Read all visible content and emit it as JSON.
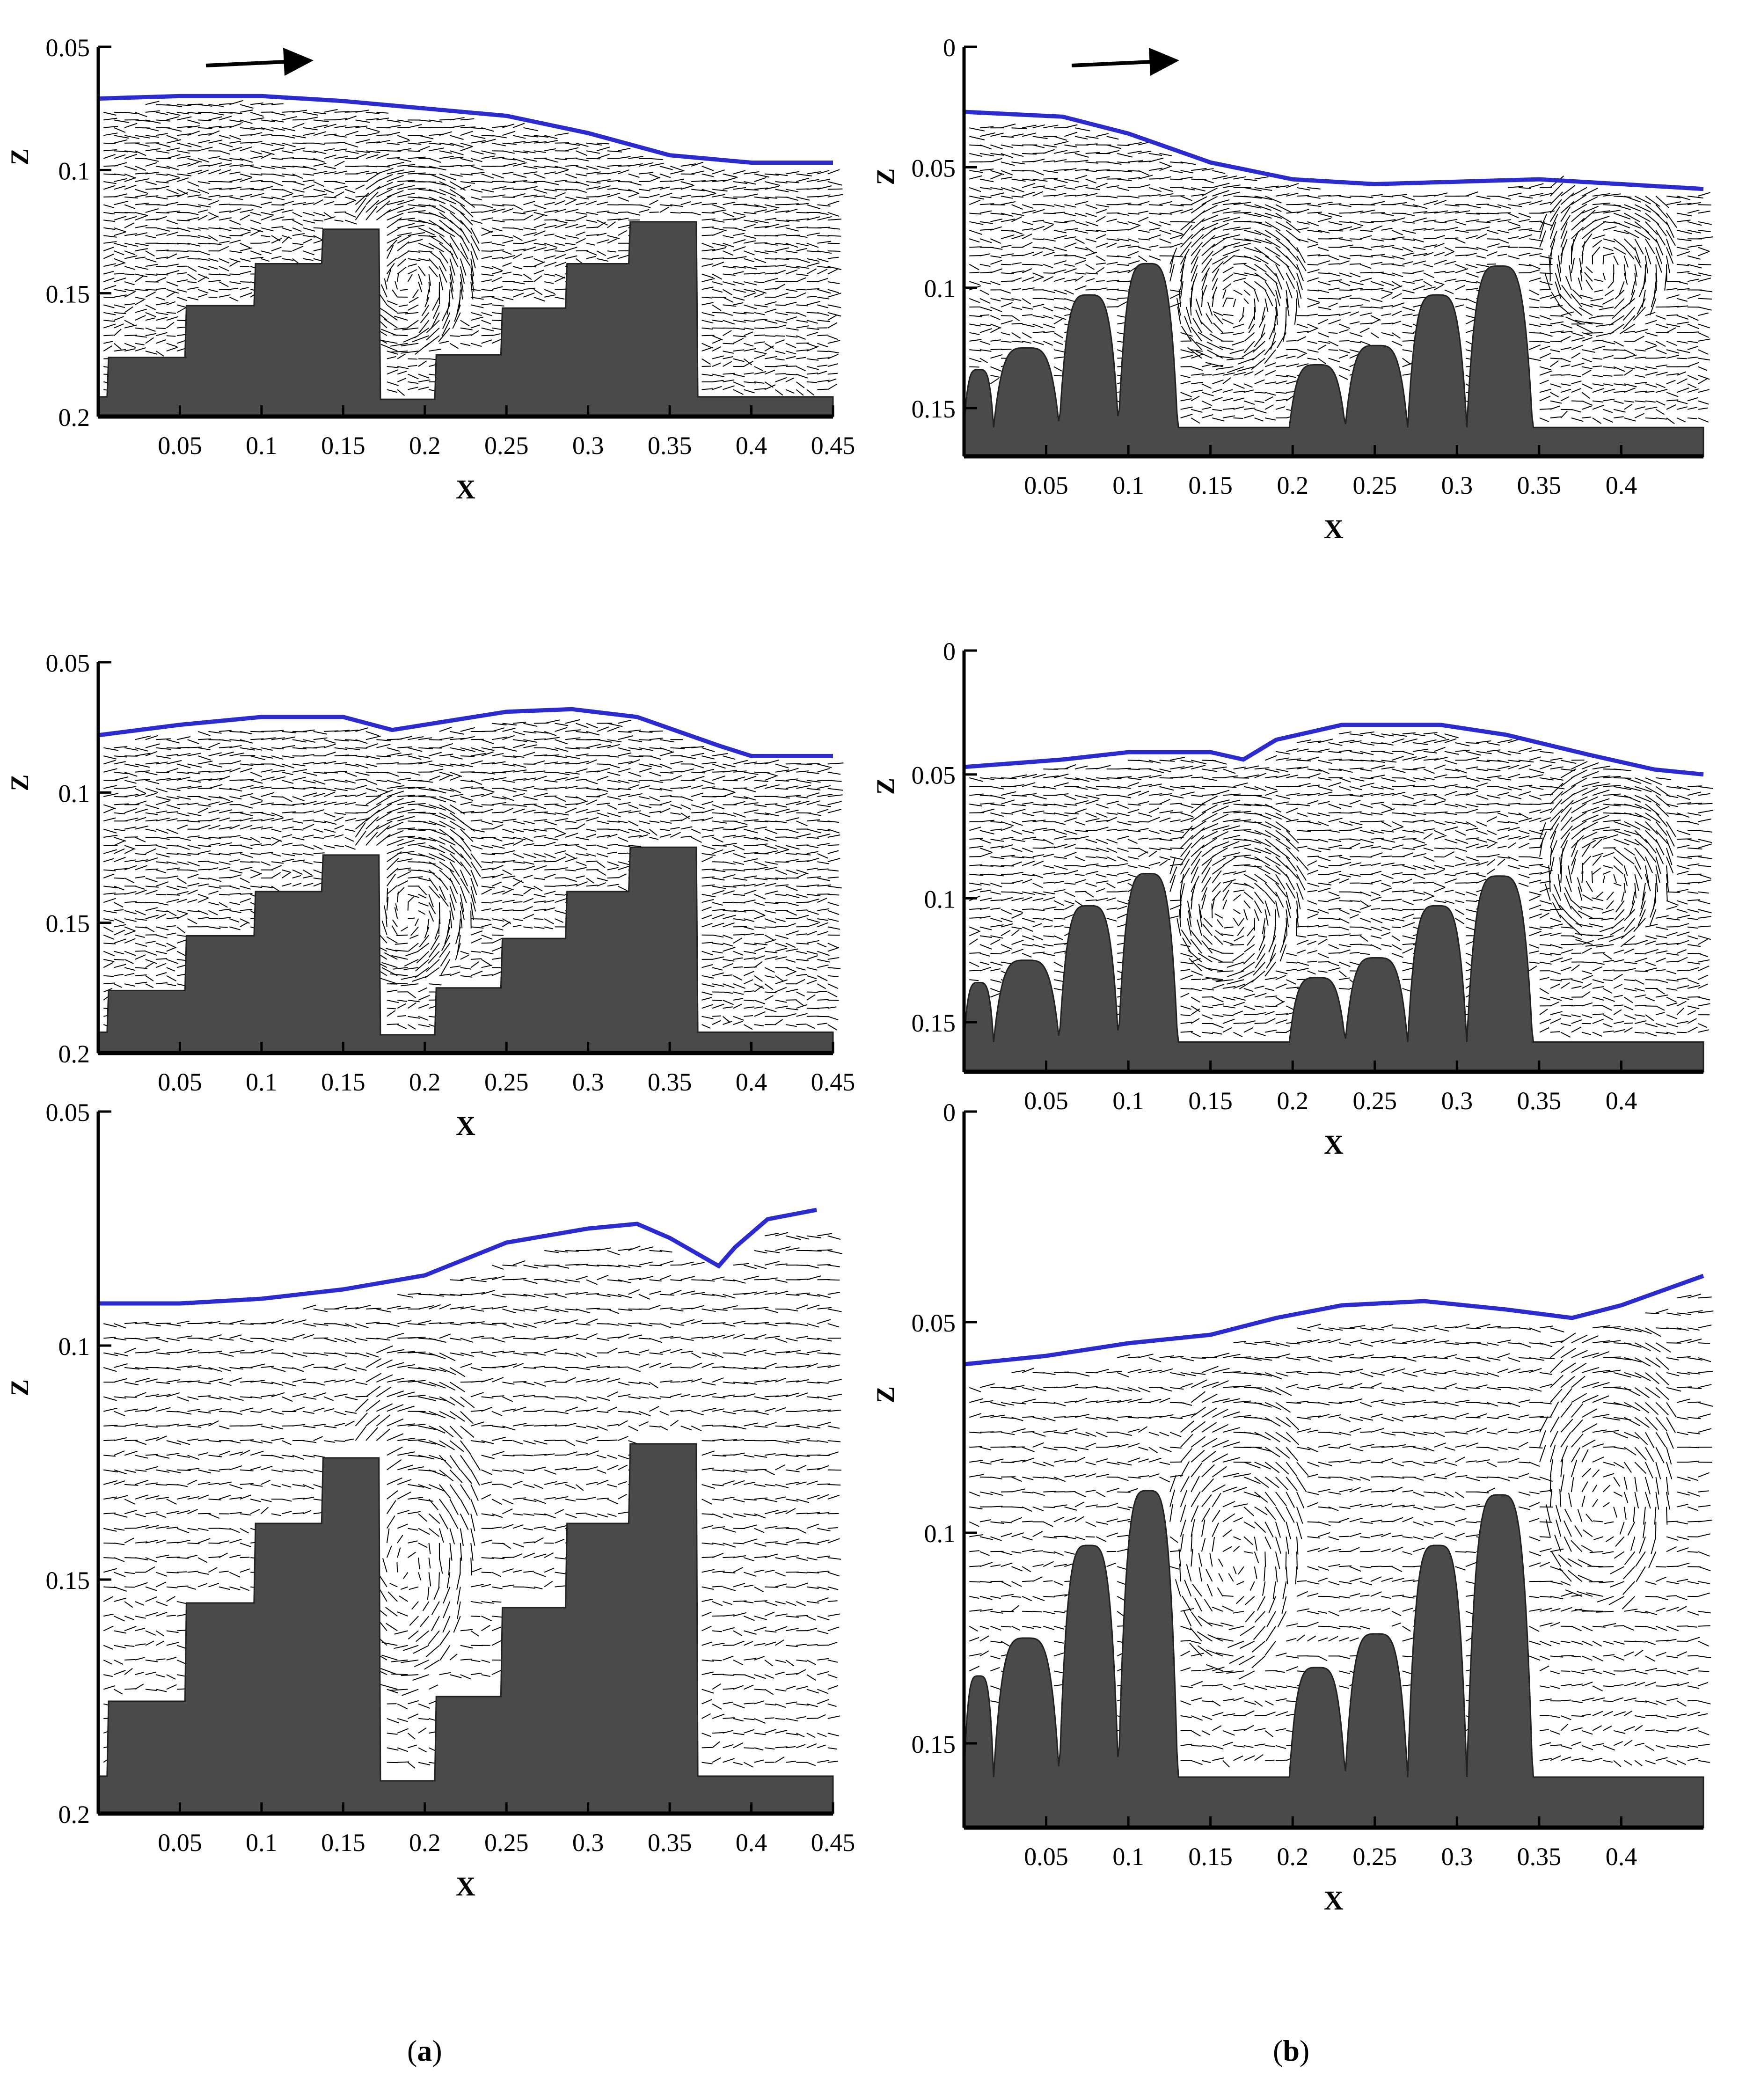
{
  "chart_data": [
    {
      "type": "vector-field",
      "panel": "a-1",
      "xlabel": "X",
      "ylabel": "Z",
      "xlim": [
        0.0,
        0.45
      ],
      "ylim": [
        0.05,
        0.2
      ],
      "y_inverted": true,
      "xticks": [
        "0.05",
        "0.1",
        "0.15",
        "0.2",
        "0.25",
        "0.3",
        "0.35",
        "0.4",
        "0.45"
      ],
      "yticks": [
        "0.05",
        "0.1",
        "0.15",
        "0.2"
      ],
      "flow_arrow": true,
      "free_surface": [
        [
          0.0,
          0.071
        ],
        [
          0.05,
          0.07
        ],
        [
          0.1,
          0.07
        ],
        [
          0.15,
          0.072
        ],
        [
          0.2,
          0.075
        ],
        [
          0.25,
          0.078
        ],
        [
          0.3,
          0.085
        ],
        [
          0.35,
          0.094
        ],
        [
          0.4,
          0.097
        ],
        [
          0.45,
          0.097
        ]
      ],
      "obstacle": "stepped"
    },
    {
      "type": "vector-field",
      "panel": "a-2",
      "xlabel": "X",
      "ylabel": "Z",
      "xlim": [
        0.0,
        0.45
      ],
      "ylim": [
        0.05,
        0.2
      ],
      "y_inverted": true,
      "xticks": [
        "0.05",
        "0.1",
        "0.15",
        "0.2",
        "0.25",
        "0.3",
        "0.35",
        "0.4",
        "0.45"
      ],
      "yticks": [
        "0.05",
        "0.1",
        "0.15",
        "0.2"
      ],
      "flow_arrow": false,
      "free_surface": [
        [
          0.0,
          0.078
        ],
        [
          0.05,
          0.074
        ],
        [
          0.1,
          0.071
        ],
        [
          0.15,
          0.071
        ],
        [
          0.18,
          0.076
        ],
        [
          0.21,
          0.073
        ],
        [
          0.25,
          0.069
        ],
        [
          0.29,
          0.068
        ],
        [
          0.33,
          0.071
        ],
        [
          0.38,
          0.082
        ],
        [
          0.4,
          0.086
        ],
        [
          0.45,
          0.086
        ]
      ],
      "obstacle": "stepped"
    },
    {
      "type": "vector-field",
      "panel": "a-3",
      "xlabel": "X",
      "ylabel": "Z",
      "xlim": [
        0.0,
        0.45
      ],
      "ylim": [
        0.05,
        0.2
      ],
      "y_inverted": true,
      "xticks": [
        "0.05",
        "0.1",
        "0.15",
        "0.2",
        "0.25",
        "0.3",
        "0.35",
        "0.4",
        "0.45"
      ],
      "yticks": [
        "0.05",
        "0.1",
        "0.15",
        "0.2"
      ],
      "flow_arrow": false,
      "free_surface": [
        [
          0.0,
          0.091
        ],
        [
          0.05,
          0.091
        ],
        [
          0.1,
          0.09
        ],
        [
          0.15,
          0.088
        ],
        [
          0.2,
          0.085
        ],
        [
          0.25,
          0.078
        ],
        [
          0.3,
          0.075
        ],
        [
          0.33,
          0.074
        ],
        [
          0.35,
          0.077
        ],
        [
          0.38,
          0.083
        ],
        [
          0.39,
          0.079
        ],
        [
          0.41,
          0.073
        ],
        [
          0.44,
          0.071
        ]
      ],
      "obstacle": "stepped"
    },
    {
      "type": "vector-field",
      "panel": "b-1",
      "xlabel": "X",
      "ylabel": "Z",
      "xlim": [
        0.0,
        0.45
      ],
      "ylim": [
        0.0,
        0.17
      ],
      "y_inverted": true,
      "xticks": [
        "0.05",
        "0.1",
        "0.15",
        "0.2",
        "0.25",
        "0.3",
        "0.35",
        "0.4"
      ],
      "yticks": [
        "0",
        "0.05",
        "0.1",
        "0.15"
      ],
      "flow_arrow": true,
      "free_surface": [
        [
          0.0,
          0.027
        ],
        [
          0.06,
          0.029
        ],
        [
          0.1,
          0.036
        ],
        [
          0.15,
          0.048
        ],
        [
          0.2,
          0.055
        ],
        [
          0.25,
          0.057
        ],
        [
          0.3,
          0.056
        ],
        [
          0.35,
          0.055
        ],
        [
          0.4,
          0.057
        ],
        [
          0.45,
          0.059
        ]
      ],
      "obstacle": "humps"
    },
    {
      "type": "vector-field",
      "panel": "b-2",
      "xlabel": "X",
      "ylabel": "Z",
      "xlim": [
        0.0,
        0.45
      ],
      "ylim": [
        0.0,
        0.17
      ],
      "y_inverted": true,
      "xticks": [
        "0.05",
        "0.1",
        "0.15",
        "0.2",
        "0.25",
        "0.3",
        "0.35",
        "0.4"
      ],
      "yticks": [
        "0",
        "0.05",
        "0.1",
        "0.15"
      ],
      "flow_arrow": false,
      "free_surface": [
        [
          0.0,
          0.047
        ],
        [
          0.06,
          0.044
        ],
        [
          0.1,
          0.041
        ],
        [
          0.15,
          0.041
        ],
        [
          0.17,
          0.044
        ],
        [
          0.19,
          0.036
        ],
        [
          0.23,
          0.03
        ],
        [
          0.29,
          0.03
        ],
        [
          0.33,
          0.034
        ],
        [
          0.38,
          0.042
        ],
        [
          0.42,
          0.048
        ],
        [
          0.45,
          0.05
        ]
      ],
      "obstacle": "humps"
    },
    {
      "type": "vector-field",
      "panel": "b-3",
      "xlabel": "X",
      "ylabel": "Z",
      "xlim": [
        0.0,
        0.45
      ],
      "ylim": [
        0.0,
        0.17
      ],
      "y_inverted": true,
      "xticks": [
        "0.05",
        "0.1",
        "0.15",
        "0.2",
        "0.25",
        "0.3",
        "0.35",
        "0.4"
      ],
      "yticks": [
        "0",
        "0.05",
        "0.1",
        "0.15"
      ],
      "flow_arrow": false,
      "free_surface": [
        [
          0.0,
          0.06
        ],
        [
          0.05,
          0.058
        ],
        [
          0.1,
          0.055
        ],
        [
          0.15,
          0.053
        ],
        [
          0.19,
          0.049
        ],
        [
          0.23,
          0.046
        ],
        [
          0.28,
          0.045
        ],
        [
          0.33,
          0.047
        ],
        [
          0.37,
          0.049
        ],
        [
          0.4,
          0.046
        ],
        [
          0.45,
          0.039
        ]
      ],
      "obstacle": "humps"
    }
  ],
  "captions": {
    "a": {
      "open": "(",
      "letter": "a",
      "close": ")"
    },
    "b": {
      "open": "(",
      "letter": "b",
      "close": ")"
    }
  },
  "colors": {
    "surface": "#2b2bcf",
    "solid": "#4a4a4a",
    "vectors": "#000000"
  }
}
